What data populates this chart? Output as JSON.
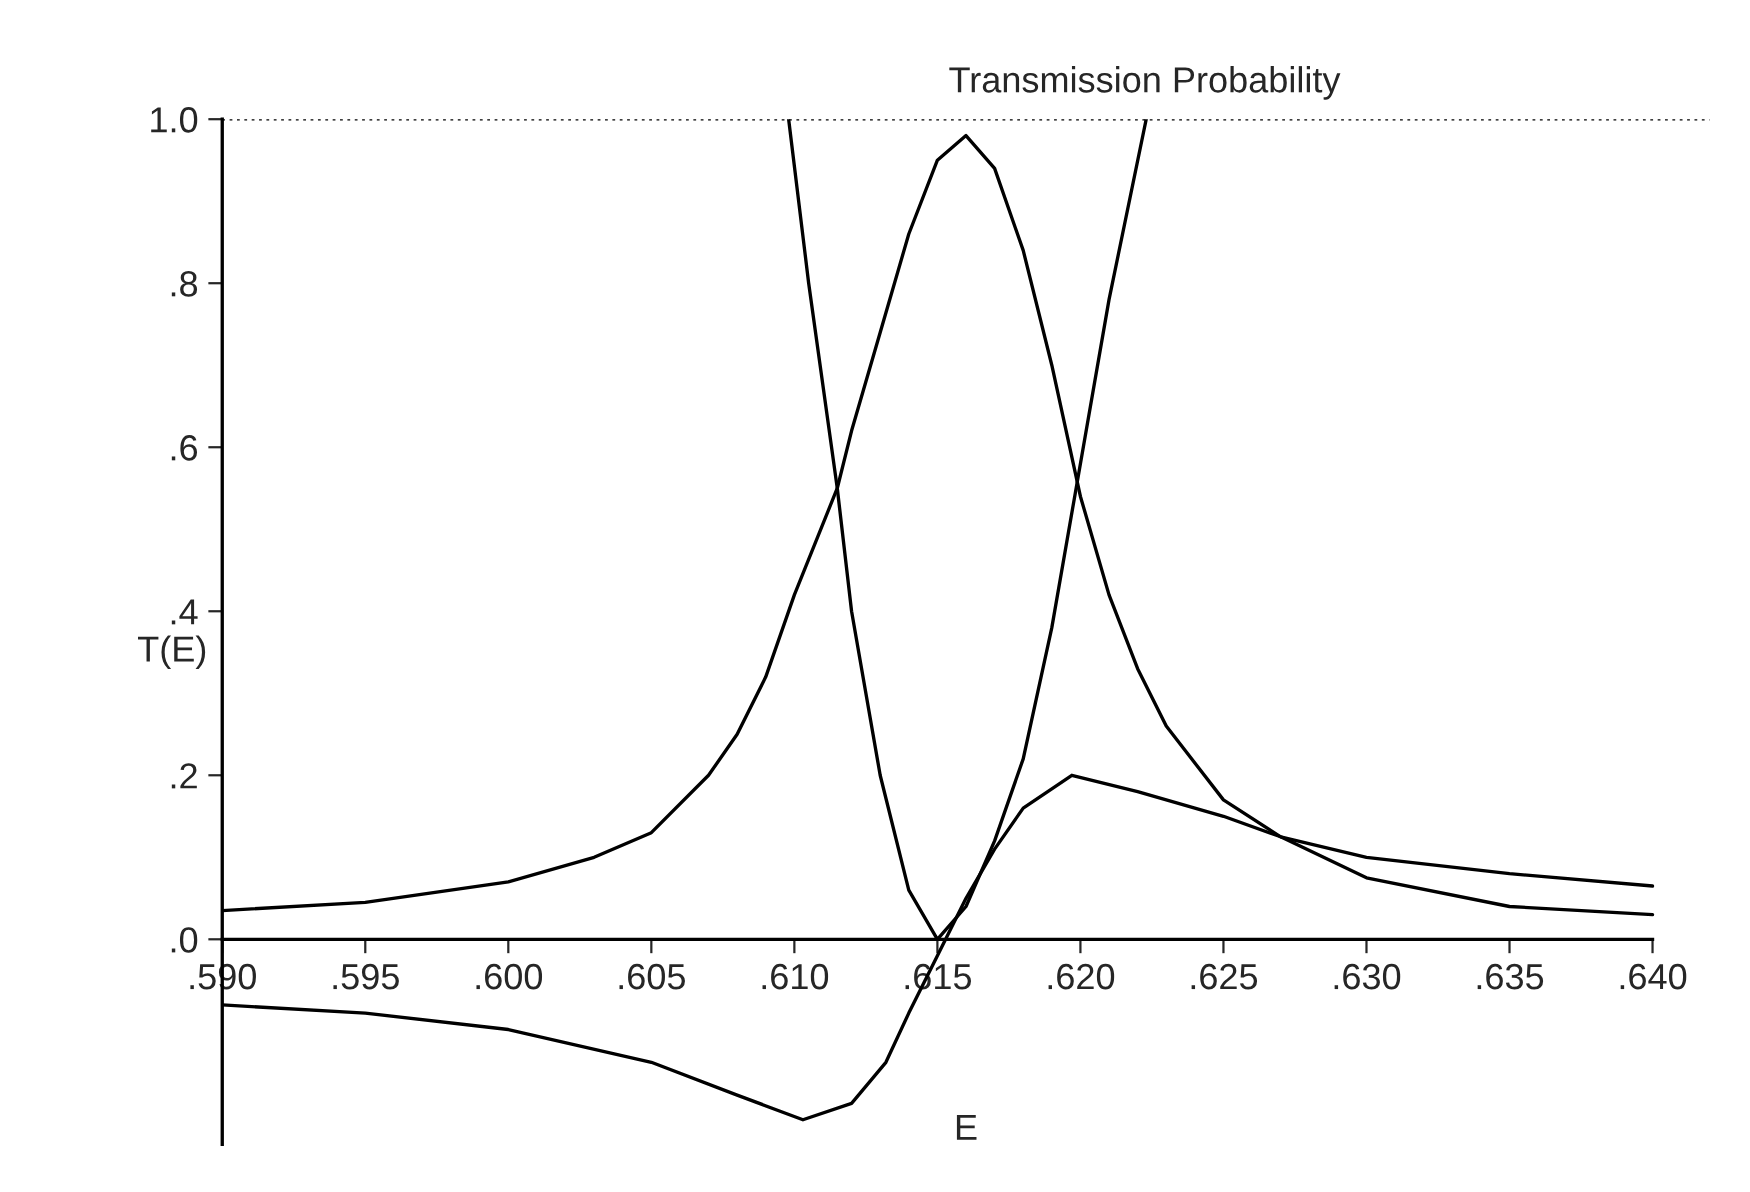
{
  "chart_data": {
    "type": "line",
    "title": "Transmission Probability",
    "xlabel": "E",
    "ylabel": "T(E)",
    "xlim": [
      0.59,
      0.642
    ],
    "ylim": [
      -0.25,
      1.0
    ],
    "xticks": [
      {
        "value": 0.59,
        "label": ".590"
      },
      {
        "value": 0.595,
        "label": ".595"
      },
      {
        "value": 0.6,
        "label": ".600"
      },
      {
        "value": 0.605,
        "label": ".605"
      },
      {
        "value": 0.61,
        "label": ".610"
      },
      {
        "value": 0.615,
        "label": ".615"
      },
      {
        "value": 0.62,
        "label": ".620"
      },
      {
        "value": 0.625,
        "label": ".625"
      },
      {
        "value": 0.63,
        "label": ".630"
      },
      {
        "value": 0.635,
        "label": ".635"
      },
      {
        "value": 0.64,
        "label": ".640"
      }
    ],
    "yticks": [
      {
        "value": 0,
        "label": ".0"
      },
      {
        "value": 0.2,
        "label": ".2"
      },
      {
        "value": 0.4,
        "label": ".4"
      },
      {
        "value": 0.6,
        "label": ".6"
      },
      {
        "value": 0.8,
        "label": ".8"
      },
      {
        "value": 1.0,
        "label": "1.0"
      }
    ],
    "ref_lines": [
      {
        "axis": "y",
        "value": 1.0,
        "color": "#000000",
        "line_style": "dotted"
      }
    ],
    "grid": false,
    "legend": false,
    "marker": "none",
    "line_style": "solid",
    "series": [
      {
        "color": "#000000",
        "x": [
          0.59,
          0.595,
          0.6,
          0.603,
          0.605,
          0.607,
          0.608,
          0.609,
          0.61,
          0.6115,
          0.612,
          0.613,
          0.614,
          0.615,
          0.616,
          0.617,
          0.618,
          0.619,
          0.62,
          0.621,
          0.622,
          0.623,
          0.625,
          0.627,
          0.63,
          0.635,
          0.64
        ],
        "values": [
          0.035,
          0.045,
          0.07,
          0.1,
          0.13,
          0.2,
          0.25,
          0.32,
          0.42,
          0.55,
          0.62,
          0.74,
          0.86,
          0.95,
          0.98,
          0.94,
          0.84,
          0.7,
          0.54,
          0.42,
          0.33,
          0.26,
          0.17,
          0.125,
          0.075,
          0.04,
          0.03
        ]
      },
      {
        "color": "#000000",
        "x": [
          0.6098,
          0.6105,
          0.6115,
          0.612,
          0.613,
          0.614,
          0.615,
          0.616,
          0.617,
          0.618,
          0.619,
          0.6198,
          0.621,
          0.6223
        ],
        "values": [
          1.0,
          0.8,
          0.55,
          0.4,
          0.2,
          0.06,
          0.0,
          0.04,
          0.12,
          0.22,
          0.38,
          0.54,
          0.78,
          1.0
        ]
      },
      {
        "color": "#000000",
        "x": [
          0.59,
          0.595,
          0.6,
          0.605,
          0.608,
          0.6103,
          0.612,
          0.6132,
          0.614,
          0.615,
          0.616,
          0.617,
          0.618,
          0.6197,
          0.622,
          0.625,
          0.627,
          0.63,
          0.635,
          0.64
        ],
        "values": [
          -0.08,
          -0.09,
          -0.11,
          -0.15,
          -0.19,
          -0.22,
          -0.2,
          -0.15,
          -0.09,
          -0.02,
          0.05,
          0.11,
          0.16,
          0.2,
          0.18,
          0.15,
          0.125,
          0.1,
          0.08,
          0.065
        ]
      }
    ]
  }
}
